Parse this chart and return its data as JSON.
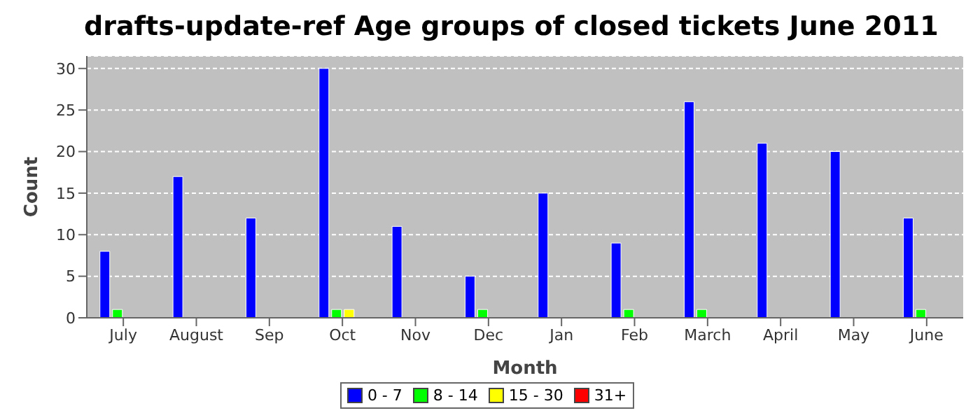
{
  "chart_data": {
    "type": "bar",
    "title": "drafts-update-ref Age groups of closed tickets June 2011",
    "xlabel": "Month",
    "ylabel": "Count",
    "categories": [
      "July",
      "August",
      "Sep",
      "Oct",
      "Nov",
      "Dec",
      "Jan",
      "Feb",
      "March",
      "April",
      "May",
      "June"
    ],
    "series": [
      {
        "name": "0 - 7",
        "color": "#0000ff",
        "values": [
          8,
          17,
          12,
          30,
          11,
          5,
          15,
          9,
          26,
          21,
          20,
          12
        ]
      },
      {
        "name": "8 - 14",
        "color": "#00ff00",
        "values": [
          1,
          0,
          0,
          1,
          0,
          1,
          0,
          1,
          1,
          0,
          0,
          1
        ]
      },
      {
        "name": "15 - 30",
        "color": "#ffff00",
        "values": [
          0,
          0,
          0,
          1,
          0,
          0,
          0,
          0,
          0,
          0,
          0,
          0
        ]
      },
      {
        "name": "31+",
        "color": "#ff0000",
        "values": [
          0,
          0,
          0,
          0,
          0,
          0,
          0,
          0,
          0,
          0,
          0,
          0
        ]
      }
    ],
    "ylim": [
      0,
      31.5
    ],
    "yticks": [
      0,
      5,
      10,
      15,
      20,
      25,
      30
    ],
    "grid": "y",
    "legend": "bottom"
  }
}
